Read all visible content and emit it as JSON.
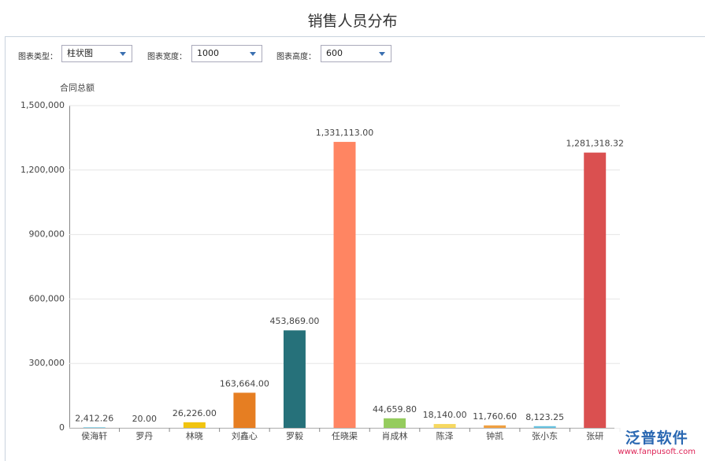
{
  "header": {
    "title": "销售人员分布"
  },
  "controls": [
    {
      "label": "图表类型：",
      "value": "柱状图"
    },
    {
      "label": "图表宽度：",
      "value": "1000"
    },
    {
      "label": "图表高度：",
      "value": "600"
    }
  ],
  "watermark": {
    "brand": "泛普软件",
    "url": "www.fanpusoft.com"
  },
  "chart_data": {
    "type": "bar",
    "y_label": "合同总额",
    "categories": [
      "侯海轩",
      "罗丹",
      "林晓",
      "刘鑫心",
      "罗毅",
      "任晓渠",
      "肖成林",
      "陈泽",
      "钟凯",
      "张小东",
      "张研"
    ],
    "values": [
      2412.26,
      20,
      26226,
      163664,
      453869,
      1331113,
      44659.8,
      18140,
      11760.6,
      8123.25,
      1281318.32
    ],
    "value_labels": [
      "2,412.26",
      "20.00",
      "26,226.00",
      "163,664.00",
      "453,869.00",
      "1,331,113.00",
      "44,659.80",
      "18,140.00",
      "11,760.60",
      "8,123.25",
      "1,281,318.32"
    ],
    "colors": [
      "#5bc0de",
      "#9b59b6",
      "#f1c40f",
      "#e67e22",
      "#26717a",
      "#ff8562",
      "#95cc5e",
      "#f6d860",
      "#f0a040",
      "#66c2e0",
      "#da5050"
    ],
    "ylim": [
      0,
      1500000
    ],
    "yticks": [
      0,
      {
        "value": 300000,
        "label": "300,000"
      },
      {
        "value": 600000,
        "label": "600,000"
      },
      {
        "value": 900000,
        "label": "900,000"
      },
      {
        "value": 1200000,
        "label": "1,200,000"
      },
      {
        "value": 1500000,
        "label": "1,500,000"
      }
    ],
    "grid": true
  }
}
